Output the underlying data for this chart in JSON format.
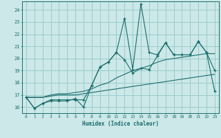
{
  "xlabel": "Humidex (Indice chaleur)",
  "bg_color": "#cce8e8",
  "grid_color": "#99cccc",
  "line_color": "#1a6b6b",
  "xlim": [
    -0.5,
    23.5
  ],
  "ylim": [
    15.5,
    24.7
  ],
  "xticks": [
    0,
    1,
    2,
    3,
    4,
    5,
    6,
    7,
    8,
    9,
    10,
    11,
    12,
    13,
    14,
    15,
    16,
    17,
    18,
    19,
    20,
    21,
    22,
    23
  ],
  "yticks": [
    16,
    17,
    18,
    19,
    20,
    21,
    22,
    23,
    24
  ],
  "series": [
    {
      "x": [
        0,
        1,
        2,
        3,
        4,
        5,
        6,
        7,
        8,
        9,
        10,
        11,
        12,
        13,
        14,
        15,
        16,
        17,
        18,
        19,
        20,
        21,
        22,
        23
      ],
      "y": [
        16.8,
        15.9,
        16.3,
        16.5,
        16.5,
        16.5,
        16.7,
        16.0,
        17.8,
        19.3,
        19.7,
        20.5,
        19.9,
        18.8,
        19.2,
        19.1,
        20.2,
        21.3,
        20.3,
        20.3,
        20.3,
        21.4,
        20.5,
        19.0
      ],
      "marker": true
    },
    {
      "x": [
        0,
        1,
        2,
        3,
        4,
        5,
        6,
        7,
        8,
        9,
        10,
        11,
        12,
        13,
        14,
        15,
        16,
        17,
        18,
        19,
        20,
        21,
        22,
        23
      ],
      "y": [
        16.8,
        15.9,
        16.3,
        16.6,
        16.6,
        16.6,
        16.6,
        16.6,
        17.8,
        19.3,
        19.7,
        20.5,
        23.3,
        19.1,
        24.5,
        20.5,
        20.3,
        21.3,
        20.3,
        20.3,
        20.3,
        21.4,
        20.5,
        17.3
      ],
      "marker": true
    },
    {
      "x": [
        0,
        1,
        2,
        3,
        4,
        5,
        6,
        7,
        8,
        9,
        10,
        11,
        12,
        13,
        14,
        15,
        16,
        17,
        18,
        19,
        20,
        21,
        22,
        23
      ],
      "y": [
        16.8,
        16.8,
        16.8,
        16.9,
        17.0,
        17.0,
        17.0,
        17.1,
        17.2,
        17.3,
        17.4,
        17.5,
        17.6,
        17.7,
        17.8,
        17.9,
        18.0,
        18.1,
        18.2,
        18.3,
        18.4,
        18.5,
        18.6,
        18.7
      ],
      "marker": false
    },
    {
      "x": [
        0,
        1,
        2,
        3,
        4,
        5,
        6,
        7,
        8,
        9,
        10,
        11,
        12,
        13,
        14,
        15,
        16,
        17,
        18,
        19,
        20,
        21,
        22,
        23
      ],
      "y": [
        16.8,
        16.8,
        16.8,
        17.0,
        17.1,
        17.1,
        17.2,
        17.3,
        17.5,
        17.8,
        18.0,
        18.4,
        18.7,
        19.0,
        19.2,
        19.4,
        19.7,
        19.9,
        20.0,
        20.1,
        20.2,
        20.3,
        20.4,
        20.4
      ],
      "marker": false
    }
  ]
}
